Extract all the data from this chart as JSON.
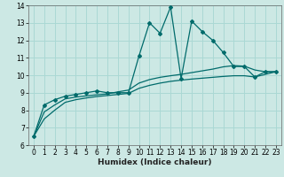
{
  "xlabel": "Humidex (Indice chaleur)",
  "bg_color": "#cce8e4",
  "grid_color": "#aad8d4",
  "line_color": "#006b6b",
  "xlim": [
    -0.5,
    23.5
  ],
  "ylim": [
    6,
    14
  ],
  "x_ticks": [
    0,
    1,
    2,
    3,
    4,
    5,
    6,
    7,
    8,
    9,
    10,
    11,
    12,
    13,
    14,
    15,
    16,
    17,
    18,
    19,
    20,
    21,
    22,
    23
  ],
  "y_ticks": [
    6,
    7,
    8,
    9,
    10,
    11,
    12,
    13,
    14
  ],
  "series1_x": [
    0,
    1,
    2,
    3,
    4,
    5,
    6,
    7,
    8,
    9,
    10,
    11,
    12,
    13,
    14,
    15,
    16,
    17,
    18,
    19,
    20,
    21,
    22,
    23
  ],
  "series1_y": [
    6.5,
    8.3,
    8.6,
    8.8,
    8.9,
    9.0,
    9.1,
    9.0,
    9.0,
    9.0,
    11.1,
    13.0,
    12.4,
    13.9,
    9.8,
    13.1,
    12.5,
    12.0,
    11.3,
    10.5,
    10.5,
    9.9,
    10.2,
    10.2
  ],
  "series2_x": [
    0,
    1,
    2,
    3,
    4,
    5,
    6,
    7,
    8,
    9,
    10,
    11,
    12,
    13,
    14,
    15,
    16,
    17,
    18,
    19,
    20,
    21,
    22,
    23
  ],
  "series2_y": [
    6.5,
    7.9,
    8.3,
    8.65,
    8.75,
    8.82,
    8.88,
    8.93,
    9.05,
    9.15,
    9.55,
    9.75,
    9.88,
    9.97,
    10.05,
    10.15,
    10.25,
    10.35,
    10.48,
    10.55,
    10.52,
    10.3,
    10.2,
    10.2
  ],
  "series3_x": [
    0,
    1,
    2,
    3,
    4,
    5,
    6,
    7,
    8,
    9,
    10,
    11,
    12,
    13,
    14,
    15,
    16,
    17,
    18,
    19,
    20,
    21,
    22,
    23
  ],
  "series3_y": [
    6.5,
    7.5,
    8.0,
    8.45,
    8.6,
    8.7,
    8.78,
    8.84,
    8.9,
    8.96,
    9.25,
    9.42,
    9.55,
    9.65,
    9.72,
    9.78,
    9.83,
    9.88,
    9.93,
    9.97,
    9.97,
    9.9,
    10.05,
    10.2
  ]
}
